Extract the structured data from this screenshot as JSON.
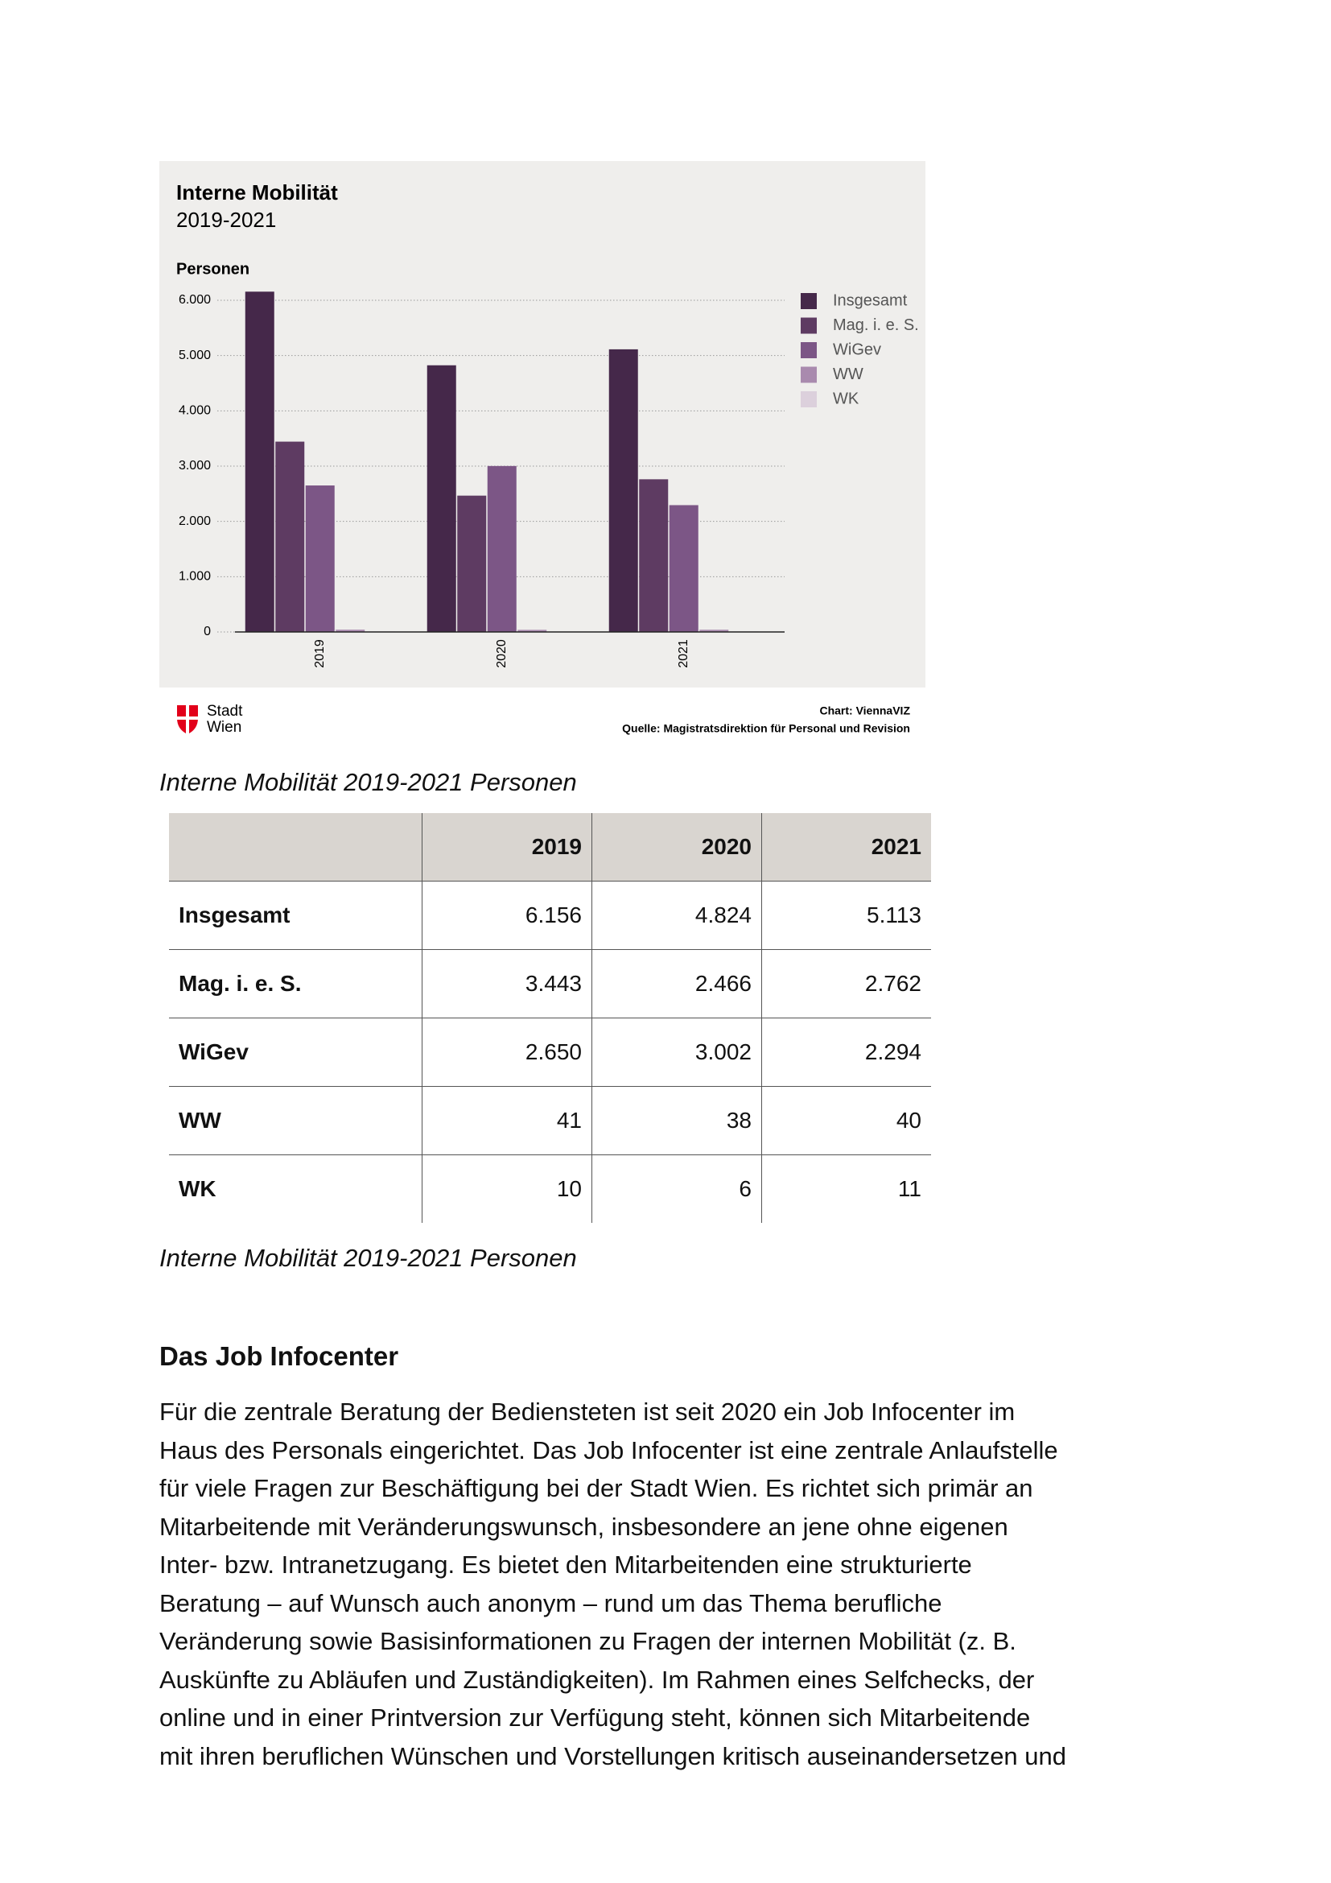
{
  "chart_data": {
    "type": "bar",
    "title": "Interne Mobilität",
    "subtitle": "2019-2021",
    "y_label": "Personen",
    "categories": [
      "2019",
      "2020",
      "2021"
    ],
    "series": [
      {
        "name": "Insgesamt",
        "color": "#45284a",
        "values": [
          6156,
          4824,
          5113
        ]
      },
      {
        "name": "Mag. i. e. S.",
        "color": "#5e3b62",
        "values": [
          3443,
          2466,
          2762
        ]
      },
      {
        "name": "WiGev",
        "color": "#7c5686",
        "values": [
          2650,
          3002,
          2294
        ]
      },
      {
        "name": "WW",
        "color": "#a98aae",
        "values": [
          41,
          38,
          40
        ]
      },
      {
        "name": "WK",
        "color": "#dcd0dc",
        "values": [
          10,
          6,
          11
        ]
      }
    ],
    "ylim": [
      0,
      6000
    ],
    "yticks": [
      0,
      {
        "value": 1000,
        "label": "1.000"
      },
      {
        "value": 2000,
        "label": "2.000"
      },
      {
        "value": 3000,
        "label": "3.000"
      },
      {
        "value": 4000,
        "label": "4.000"
      },
      {
        "value": 5000,
        "label": "5.000"
      },
      {
        "value": 6000,
        "label": "6.000"
      }
    ],
    "grid": true,
    "legend": "right",
    "logo": [
      "Stadt",
      "Wien"
    ],
    "credit": "Chart: ViennaVIZ",
    "source": "Quelle: Magistratsdirektion für Personal und Revision"
  },
  "captions": [
    "Interne Mobilität 2019-2021 Personen",
    "Interne Mobilität 2019-2021 Personen"
  ],
  "table": {
    "columns": [
      "2019",
      "2020",
      "2021"
    ],
    "rows": [
      {
        "label": "Insgesamt",
        "cells": [
          "6.156",
          "4.824",
          "5.113"
        ]
      },
      {
        "label": "Mag. i. e. S.",
        "cells": [
          "3.443",
          "2.466",
          "2.762"
        ]
      },
      {
        "label": "WiGev",
        "cells": [
          "2.650",
          "3.002",
          "2.294"
        ]
      },
      {
        "label": "WW",
        "cells": [
          "41",
          "38",
          "40"
        ]
      },
      {
        "label": "WK",
        "cells": [
          "10",
          "6",
          "11"
        ]
      }
    ]
  },
  "section": {
    "heading": "Das Job Infocenter",
    "lines": [
      "Für die zentrale Beratung der Bediensteten ist seit 2020 ein Job Infocenter im",
      "Haus des Personals eingerichtet. Das Job Infocenter ist eine zentrale Anlaufstelle",
      "für viele Fragen zur Beschäftigung bei der Stadt Wien. Es richtet sich primär an",
      "Mitarbeitende mit Veränderungswunsch, insbesondere an jene ohne eigenen",
      "Inter- bzw. Intranetzugang. Es bietet den Mitarbeitenden eine strukturierte",
      "Beratung – auf Wunsch auch anonym – rund um das Thema berufliche",
      "Veränderung sowie Basisinformationen zu Fragen der internen Mobilität (z. B.",
      "Auskünfte zu Abläufen und Zuständigkeiten). Im Rahmen eines Selfchecks, der",
      "online und in einer Printversion zur Verfügung steht, können sich Mitarbeitende",
      "mit ihren beruflichen Wünschen und Vorstellungen kritisch auseinandersetzen und"
    ]
  }
}
